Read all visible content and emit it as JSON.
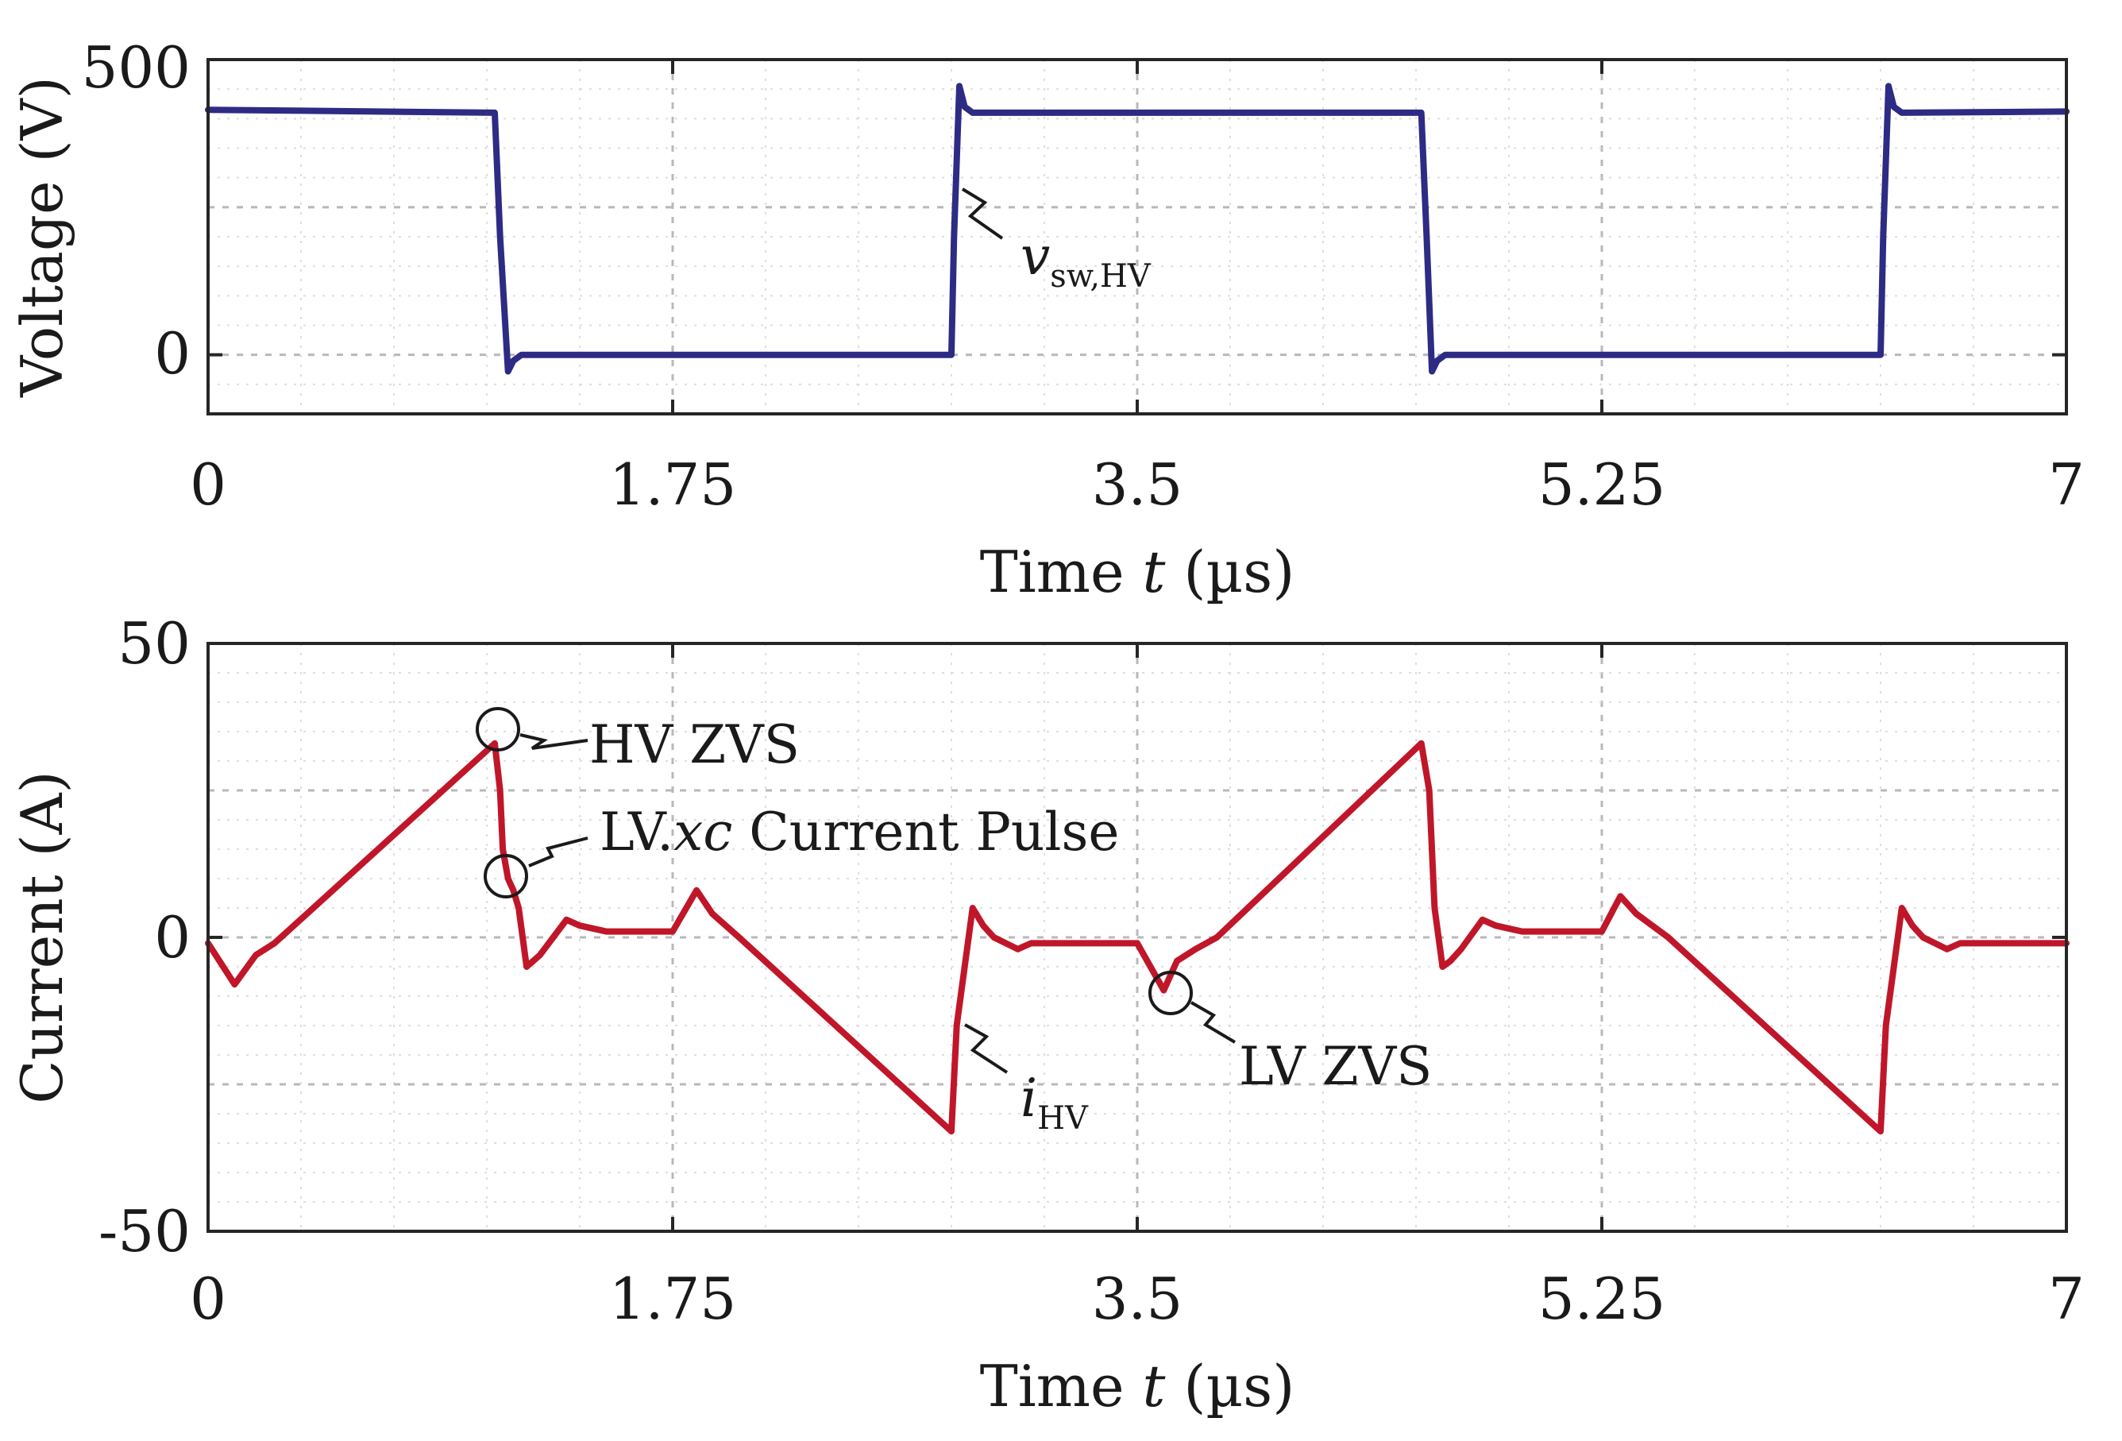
{
  "chart_data": [
    {
      "type": "line",
      "id": "top",
      "xlabel_parts": [
        "Time ",
        "t",
        " (µs)"
      ],
      "ylabel": "Voltage (V)",
      "xlim": [
        0,
        7
      ],
      "ylim": [
        -100,
        500
      ],
      "xticks": [
        0,
        1.75,
        3.5,
        5.25,
        7
      ],
      "xtick_labels": [
        "0",
        "1.75",
        "3.5",
        "5.25",
        "7"
      ],
      "yticks": [
        0,
        500
      ],
      "ytick_labels": [
        "0",
        "500"
      ],
      "grid": true,
      "series": [
        {
          "name": "v_sw,HV",
          "color": "#2e2b85",
          "x": [
            0,
            1.08,
            1.1,
            1.13,
            1.15,
            1.18,
            2.8,
            2.81,
            2.83,
            2.85,
            2.88,
            4.57,
            4.59,
            4.61,
            4.63,
            4.66,
            6.3,
            6.31,
            6.33,
            6.35,
            6.38,
            7
          ],
          "y": [
            415,
            410,
            200,
            -28,
            -10,
            0,
            0,
            200,
            455,
            420,
            410,
            410,
            200,
            -28,
            -10,
            0,
            0,
            200,
            455,
            420,
            410,
            412
          ]
        }
      ],
      "annotations": [
        {
          "text_main": "v",
          "text_sub": "sw,HV",
          "x": 2.83,
          "y": 280
        }
      ]
    },
    {
      "type": "line",
      "id": "bottom",
      "xlabel_parts": [
        "Time ",
        "t",
        " (µs)"
      ],
      "ylabel": "Current (A)",
      "xlim": [
        0,
        7
      ],
      "ylim": [
        -50,
        50
      ],
      "xticks": [
        0,
        1.75,
        3.5,
        5.25,
        7
      ],
      "xtick_labels": [
        "0",
        "1.75",
        "3.5",
        "5.25",
        "7"
      ],
      "yticks": [
        -50,
        0,
        50
      ],
      "ytick_labels": [
        "-50",
        "0",
        "50"
      ],
      "grid": true,
      "series": [
        {
          "name": "i_HV",
          "color": "#c0162a",
          "x": [
            0,
            0.1,
            0.18,
            0.25,
            1.08,
            1.1,
            1.11,
            1.13,
            1.15,
            1.17,
            1.2,
            1.25,
            1.35,
            1.4,
            1.5,
            1.65,
            1.75,
            1.84,
            1.9,
            2.0,
            2.8,
            2.82,
            2.85,
            2.88,
            2.92,
            2.96,
            3.05,
            3.1,
            3.2,
            3.35,
            3.5,
            3.55,
            3.6,
            3.65,
            3.72,
            3.8,
            4.57,
            4.6,
            4.62,
            4.65,
            4.68,
            4.72,
            4.8,
            4.85,
            4.95,
            5.1,
            5.25,
            5.32,
            5.38,
            5.5,
            6.3,
            6.32,
            6.35,
            6.38,
            6.42,
            6.46,
            6.55,
            6.6,
            6.7,
            6.85,
            7
          ],
          "y": [
            -1,
            -8,
            -3,
            -1,
            33,
            25,
            15,
            10,
            8,
            5,
            -5,
            -3,
            3,
            2,
            1,
            1,
            1,
            8,
            4,
            0,
            -33,
            -15,
            -5,
            5,
            2,
            0,
            -2,
            -1,
            -1,
            -1,
            -1,
            -5,
            -9,
            -4,
            -2,
            0,
            33,
            25,
            5,
            -5,
            -4,
            -2,
            3,
            2,
            1,
            1,
            1,
            7,
            4,
            0,
            -33,
            -15,
            -5,
            5,
            2,
            0,
            -2,
            -1,
            -1,
            -1,
            -1
          ]
        }
      ],
      "annotations": [
        {
          "text": "HV ZVS",
          "x": 1.08,
          "y": 35
        },
        {
          "text_parts": [
            "LV.",
            "xc",
            " Current Pulse"
          ],
          "x": 1.12,
          "y": 10
        },
        {
          "text_main": "i",
          "text_sub": "HV",
          "x": 2.82,
          "y": -15
        },
        {
          "text": "LV ZVS",
          "x": 3.6,
          "y": -9
        }
      ]
    }
  ]
}
